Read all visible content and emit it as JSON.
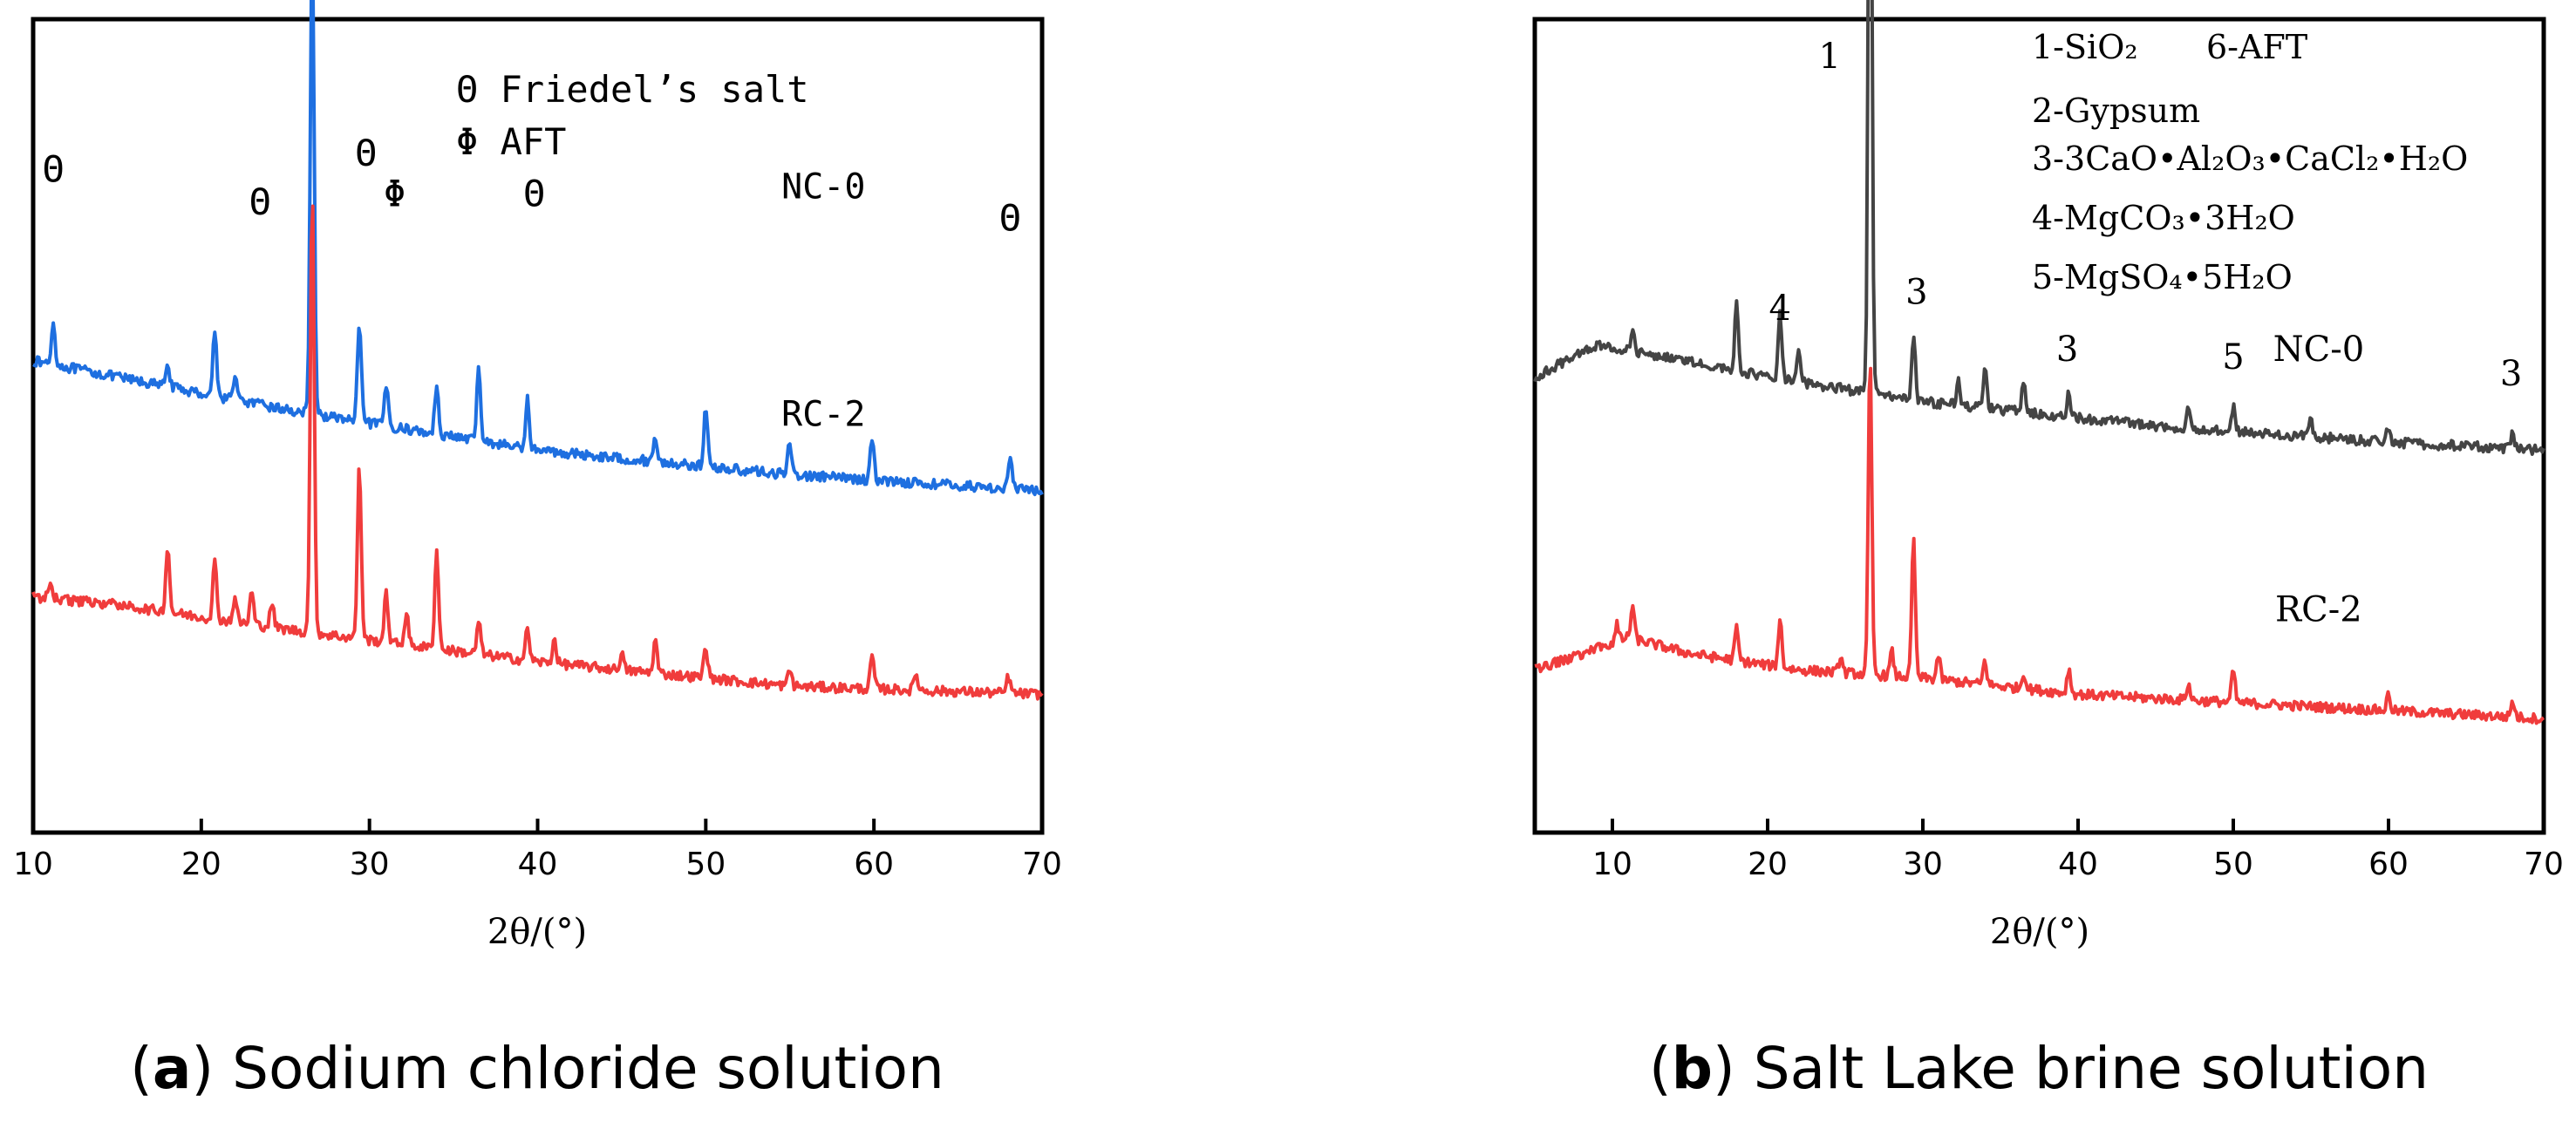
{
  "chart_data": [
    {
      "type": "line",
      "panel": "a",
      "caption_letter": "a",
      "caption_text": "Sodium chloride solution",
      "xlabel": "2θ/(°)",
      "ylabel": "",
      "xlim": [
        10,
        70
      ],
      "xticks": [
        10,
        20,
        30,
        40,
        50,
        60,
        70
      ],
      "legend": [
        "Θ Friedel’s salt",
        "Φ AFT"
      ],
      "series": [
        {
          "name": "NC-0",
          "color": "#1E6FE0",
          "baseline": [
            [
              10,
              0.58
            ],
            [
              15,
              0.56
            ],
            [
              25,
              0.52
            ],
            [
              40,
              0.47
            ],
            [
              55,
              0.44
            ],
            [
              70,
              0.42
            ]
          ],
          "peaks": [
            [
              11.2,
              0.05
            ],
            [
              18,
              0.03
            ],
            [
              20.8,
              0.08
            ],
            [
              22,
              0.03
            ],
            [
              26.6,
              0.58
            ],
            [
              29.4,
              0.12
            ],
            [
              31,
              0.05
            ],
            [
              34,
              0.06
            ],
            [
              36.5,
              0.09
            ],
            [
              39.4,
              0.06
            ],
            [
              47,
              0.03
            ],
            [
              50,
              0.07
            ],
            [
              55,
              0.04
            ],
            [
              59.9,
              0.05
            ],
            [
              68.1,
              0.04
            ]
          ]
        },
        {
          "name": "RC-2",
          "color": "#F03C3C",
          "baseline": [
            [
              10,
              0.29
            ],
            [
              15,
              0.28
            ],
            [
              25,
              0.25
            ],
            [
              40,
              0.21
            ],
            [
              55,
              0.18
            ],
            [
              70,
              0.17
            ]
          ],
          "peaks": [
            [
              11,
              0.02
            ],
            [
              18,
              0.08
            ],
            [
              20.8,
              0.07
            ],
            [
              22,
              0.03
            ],
            [
              23,
              0.04
            ],
            [
              24.2,
              0.03
            ],
            [
              26.6,
              0.54
            ],
            [
              29.4,
              0.21
            ],
            [
              31,
              0.06
            ],
            [
              32.2,
              0.04
            ],
            [
              34,
              0.12
            ],
            [
              36.5,
              0.04
            ],
            [
              39.4,
              0.04
            ],
            [
              41,
              0.03
            ],
            [
              45,
              0.02
            ],
            [
              47,
              0.04
            ],
            [
              50,
              0.04
            ],
            [
              55,
              0.02
            ],
            [
              59.9,
              0.04
            ],
            [
              62.5,
              0.02
            ],
            [
              68,
              0.02
            ]
          ]
        }
      ],
      "annotations": [
        {
          "text": "Θ",
          "x": 11.2,
          "y": 0.8
        },
        {
          "text": "Θ",
          "x": 23.5,
          "y": 0.76
        },
        {
          "text": "Θ",
          "x": 29.8,
          "y": 0.82
        },
        {
          "text": "Φ",
          "x": 31.5,
          "y": 0.77
        },
        {
          "text": "Θ",
          "x": 39.8,
          "y": 0.77
        },
        {
          "text": "Θ",
          "x": 68.1,
          "y": 0.74
        },
        {
          "text": "NC-0",
          "x": 57,
          "y": 0.78
        },
        {
          "text": "RC-2",
          "x": 57,
          "y": 0.5
        }
      ]
    },
    {
      "type": "line",
      "panel": "b",
      "caption_letter": "b",
      "caption_text": "Salt Lake brine solution",
      "xlabel": "2θ/(°)",
      "ylabel": "",
      "xlim": [
        5,
        70
      ],
      "xticks": [
        10,
        20,
        30,
        40,
        50,
        60,
        70
      ],
      "legend": [
        "1-SiO₂",
        "6-AFT",
        "2-Gypsum",
        "3-3CaO•Al₂O₃•CaCl₂•H₂O",
        "4-MgCO₃•3H₂O",
        "5-MgSO₄•5H₂O"
      ],
      "series": [
        {
          "name": "NC-0",
          "color": "#444444",
          "baseline": [
            [
              5,
              0.56
            ],
            [
              9,
              0.6
            ],
            [
              12,
              0.59
            ],
            [
              20,
              0.56
            ],
            [
              30,
              0.53
            ],
            [
              45,
              0.5
            ],
            [
              60,
              0.48
            ],
            [
              70,
              0.47
            ]
          ],
          "peaks": [
            [
              11.3,
              0.03
            ],
            [
              18,
              0.09
            ],
            [
              20.8,
              0.08
            ],
            [
              22,
              0.04
            ],
            [
              26.6,
              0.93
            ],
            [
              29.4,
              0.08
            ],
            [
              32.3,
              0.03
            ],
            [
              34,
              0.05
            ],
            [
              36.5,
              0.04
            ],
            [
              39.4,
              0.03
            ],
            [
              47.1,
              0.03
            ],
            [
              50,
              0.03
            ],
            [
              55,
              0.02
            ],
            [
              60,
              0.02
            ],
            [
              68,
              0.02
            ]
          ]
        },
        {
          "name": "RC-2",
          "color": "#F03C3C",
          "baseline": [
            [
              5,
              0.2
            ],
            [
              8,
              0.22
            ],
            [
              11,
              0.24
            ],
            [
              15,
              0.22
            ],
            [
              22,
              0.2
            ],
            [
              30,
              0.19
            ],
            [
              40,
              0.17
            ],
            [
              50,
              0.16
            ],
            [
              60,
              0.15
            ],
            [
              70,
              0.14
            ]
          ],
          "peaks": [
            [
              10.3,
              0.02
            ],
            [
              11.3,
              0.04
            ],
            [
              18,
              0.04
            ],
            [
              20.8,
              0.06
            ],
            [
              24.7,
              0.02
            ],
            [
              26.6,
              0.39
            ],
            [
              28,
              0.03
            ],
            [
              29.4,
              0.17
            ],
            [
              31,
              0.03
            ],
            [
              34,
              0.03
            ],
            [
              36.5,
              0.02
            ],
            [
              39.4,
              0.03
            ],
            [
              47.1,
              0.02
            ],
            [
              50,
              0.04
            ],
            [
              60,
              0.02
            ],
            [
              68,
              0.02
            ]
          ]
        }
      ],
      "annotations": [
        {
          "text": "1",
          "x": 24,
          "y": 0.94
        },
        {
          "text": "4",
          "x": 20.8,
          "y": 0.63
        },
        {
          "text": "3",
          "x": 29.6,
          "y": 0.65
        },
        {
          "text": "3",
          "x": 39.3,
          "y": 0.58
        },
        {
          "text": "5",
          "x": 50,
          "y": 0.57
        },
        {
          "text": "3",
          "x": 67.9,
          "y": 0.55
        },
        {
          "text": "NC-0",
          "x": 55.5,
          "y": 0.58
        },
        {
          "text": "RC-2",
          "x": 55.5,
          "y": 0.26
        }
      ]
    }
  ]
}
